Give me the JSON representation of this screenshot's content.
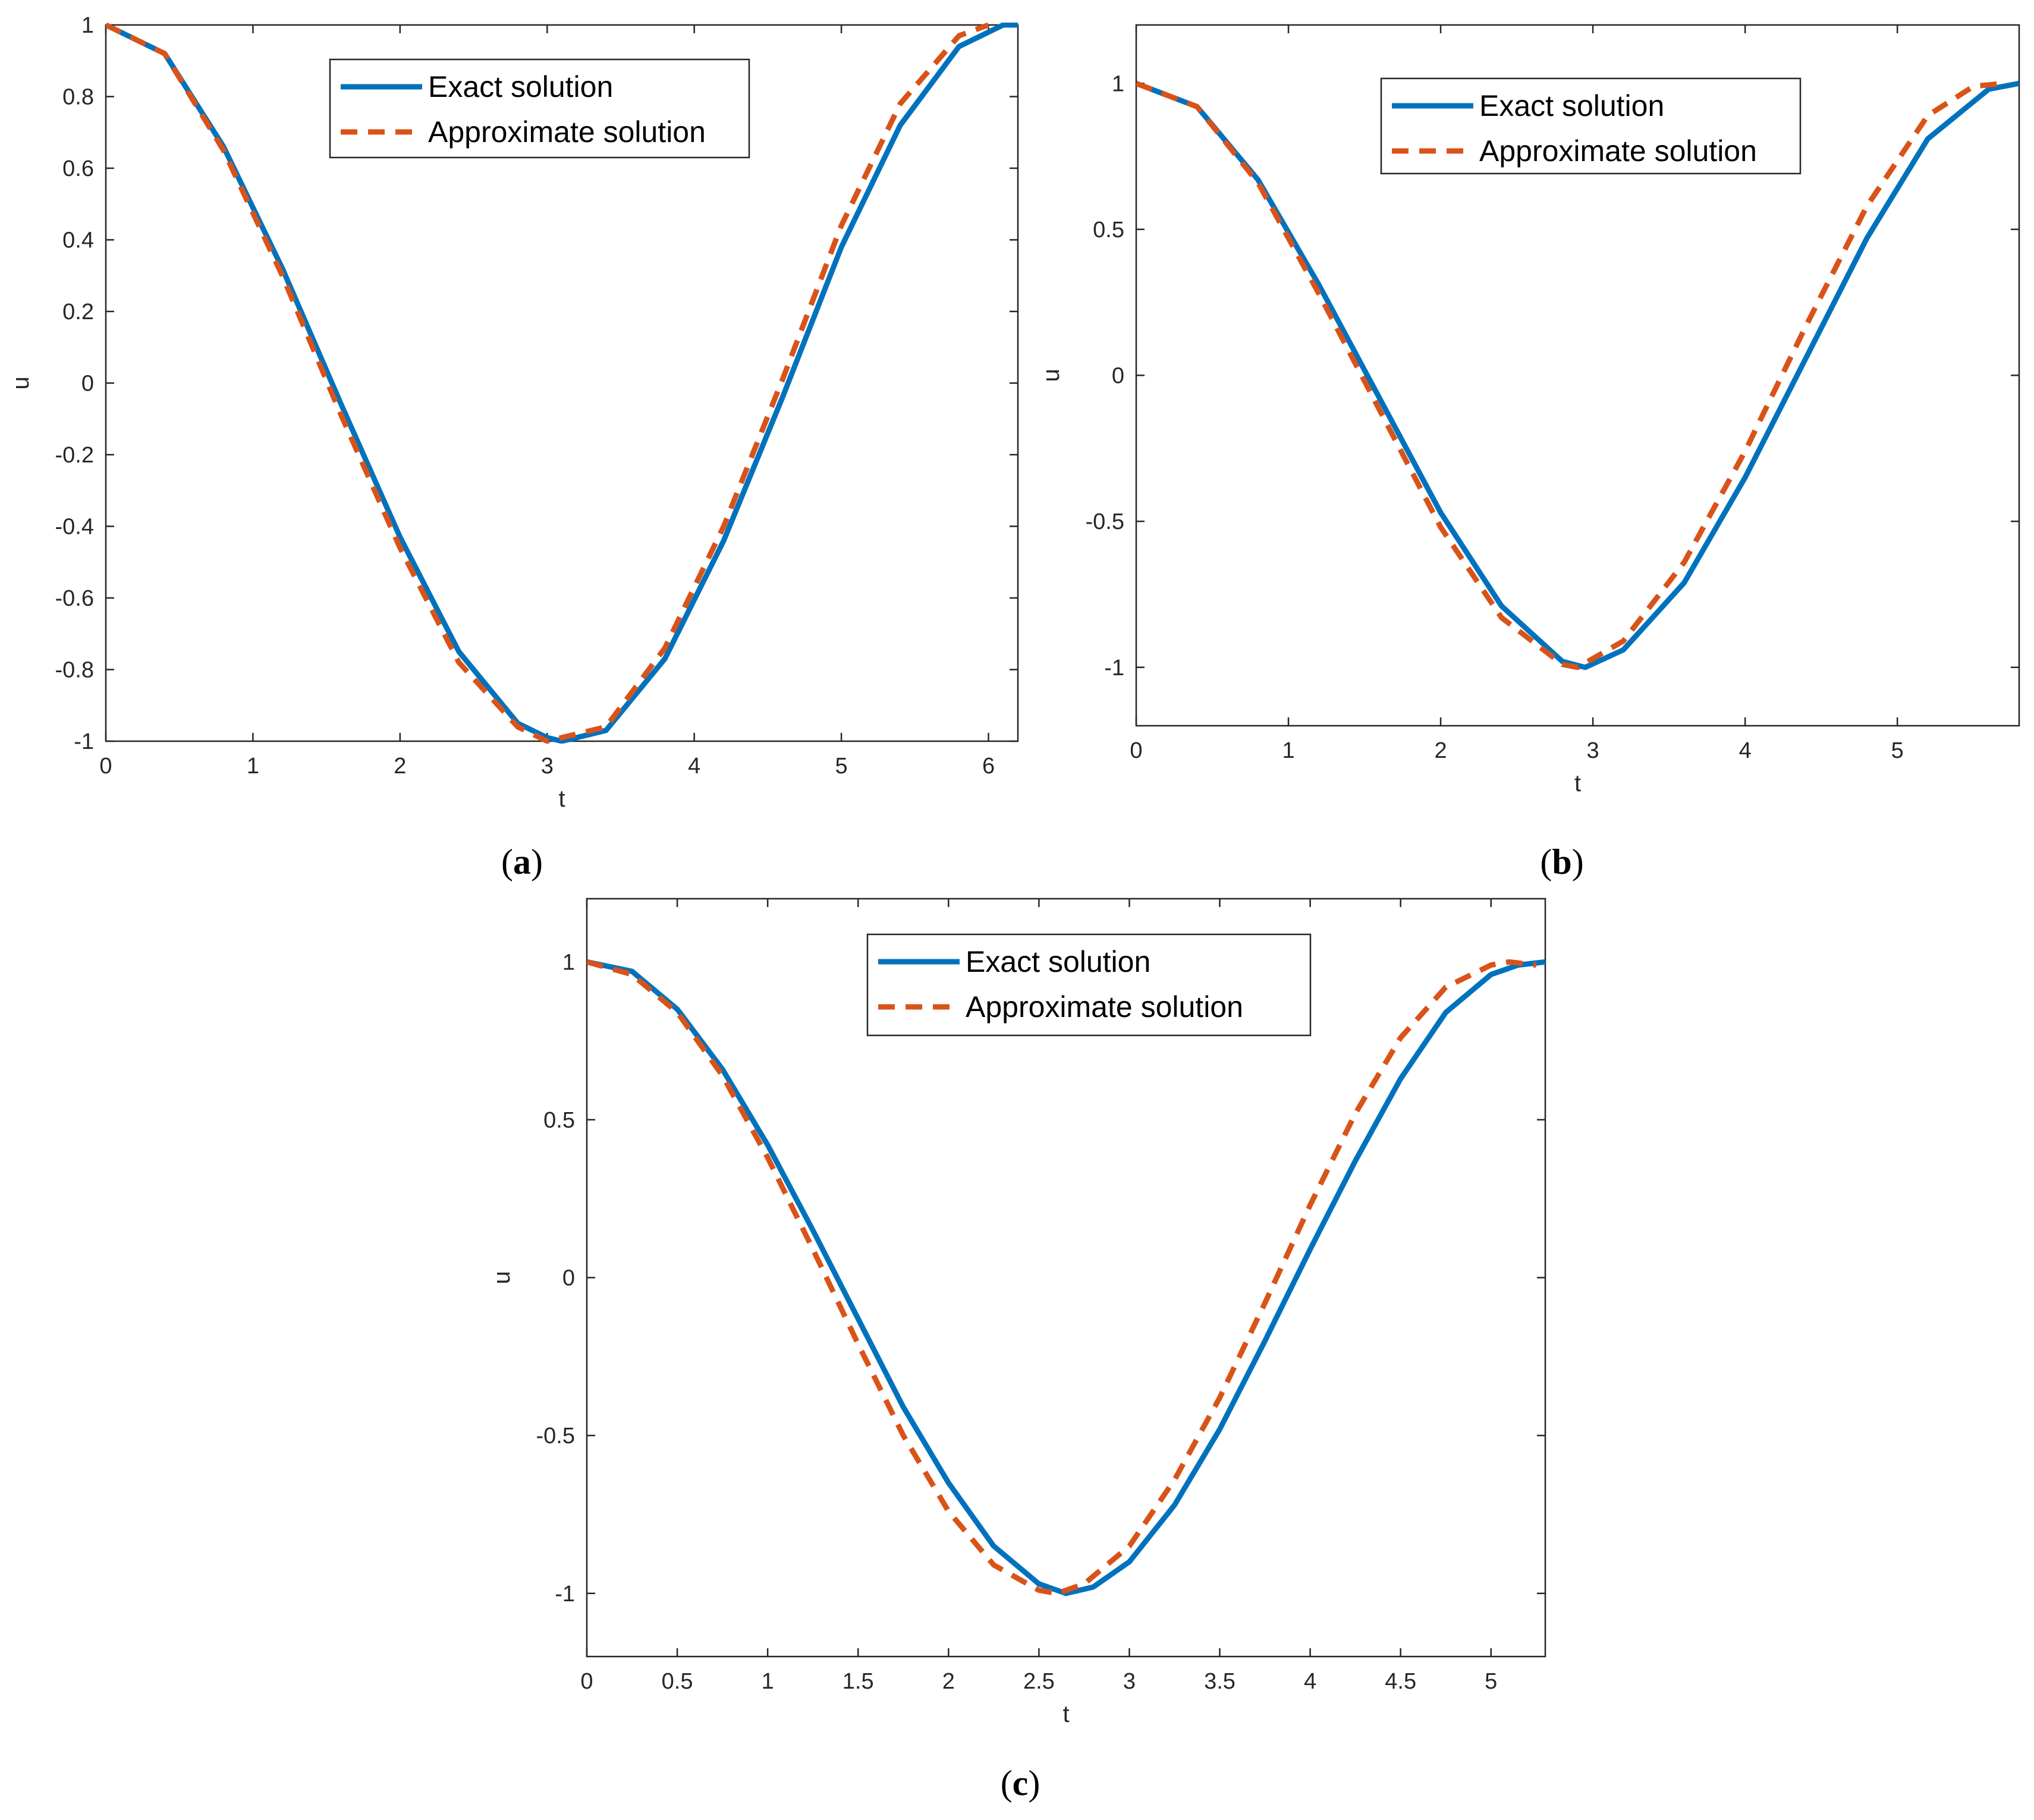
{
  "chart_data": [
    {
      "type": "line",
      "panel_label": "a",
      "xlabel": "t",
      "ylabel": "u",
      "xlim": [
        0,
        6.2
      ],
      "ylim": [
        -1,
        1
      ],
      "xticks": [
        "0",
        "1",
        "2",
        "3",
        "4",
        "5",
        "6"
      ],
      "yticks": [
        "-1",
        "-0.8",
        "-0.6",
        "-0.4",
        "-0.2",
        "0",
        "0.2",
        "0.4",
        "0.6",
        "0.8",
        "1"
      ],
      "grid": false,
      "legend": "top-center",
      "series": [
        {
          "name": "Exact solution",
          "style": "solid",
          "color": "#0072BD",
          "x": [
            0,
            0.4,
            0.8,
            1.2,
            1.6,
            2.0,
            2.4,
            2.8,
            3.0,
            3.1,
            3.4,
            3.8,
            4.2,
            4.6,
            5.0,
            5.4,
            5.8,
            6.1,
            6.2
          ],
          "y": [
            1.0,
            0.92,
            0.66,
            0.32,
            -0.06,
            -0.43,
            -0.75,
            -0.95,
            -0.99,
            -1.0,
            -0.97,
            -0.77,
            -0.44,
            -0.04,
            0.38,
            0.72,
            0.94,
            1.0,
            1.0
          ]
        },
        {
          "name": "Approximate solution",
          "style": "dashed",
          "color": "#D95319",
          "x": [
            0,
            0.4,
            0.8,
            1.2,
            1.6,
            2.0,
            2.4,
            2.8,
            3.0,
            3.4,
            3.8,
            4.2,
            4.6,
            5.0,
            5.4,
            5.8,
            6.0
          ],
          "y": [
            1.0,
            0.92,
            0.65,
            0.3,
            -0.09,
            -0.46,
            -0.78,
            -0.96,
            -1.0,
            -0.96,
            -0.74,
            -0.4,
            0.01,
            0.44,
            0.78,
            0.97,
            1.0
          ]
        }
      ]
    },
    {
      "type": "line",
      "panel_label": "b",
      "xlabel": "t",
      "ylabel": "u",
      "xlim": [
        0,
        5.8
      ],
      "ylim": [
        -1.2,
        1.2
      ],
      "xticks": [
        "0",
        "1",
        "2",
        "3",
        "4",
        "5"
      ],
      "yticks": [
        "-1",
        "-0.5",
        "0",
        "0.5",
        "1"
      ],
      "grid": false,
      "legend": "top-center",
      "series": [
        {
          "name": "Exact solution",
          "style": "solid",
          "color": "#0072BD",
          "x": [
            0,
            0.4,
            0.8,
            1.2,
            1.6,
            2.0,
            2.4,
            2.8,
            2.95,
            3.2,
            3.6,
            4.0,
            4.4,
            4.8,
            5.2,
            5.6,
            5.8
          ],
          "y": [
            1.0,
            0.92,
            0.67,
            0.31,
            -0.08,
            -0.47,
            -0.79,
            -0.98,
            -1.0,
            -0.94,
            -0.71,
            -0.35,
            0.06,
            0.47,
            0.81,
            0.98,
            1.0
          ]
        },
        {
          "name": "Approximate solution",
          "style": "dashed",
          "color": "#D95319",
          "x": [
            0,
            0.4,
            0.8,
            1.2,
            1.6,
            2.0,
            2.4,
            2.8,
            2.9,
            3.2,
            3.6,
            4.0,
            4.4,
            4.8,
            5.2,
            5.5,
            5.7
          ],
          "y": [
            1.0,
            0.92,
            0.66,
            0.28,
            -0.12,
            -0.52,
            -0.83,
            -0.99,
            -1.0,
            -0.91,
            -0.64,
            -0.26,
            0.17,
            0.58,
            0.89,
            0.99,
            1.0
          ]
        }
      ]
    },
    {
      "type": "line",
      "panel_label": "c",
      "xlabel": "t",
      "ylabel": "u",
      "xlim": [
        0,
        5.3
      ],
      "ylim": [
        -1.2,
        1.2
      ],
      "xticks": [
        "0",
        "0.5",
        "1",
        "1.5",
        "2",
        "2.5",
        "3",
        "3.5",
        "4",
        "4.5",
        "5"
      ],
      "yticks": [
        "-1",
        "-0.5",
        "0",
        "0.5",
        "1"
      ],
      "grid": false,
      "legend": "top-center",
      "series": [
        {
          "name": "Exact solution",
          "style": "solid",
          "color": "#0072BD",
          "x": [
            0,
            0.25,
            0.5,
            0.75,
            1.0,
            1.25,
            1.5,
            1.75,
            2.0,
            2.25,
            2.5,
            2.65,
            2.8,
            3.0,
            3.25,
            3.5,
            3.75,
            4.0,
            4.25,
            4.5,
            4.75,
            5.0,
            5.15,
            5.3
          ],
          "y": [
            1.0,
            0.97,
            0.85,
            0.66,
            0.42,
            0.15,
            -0.13,
            -0.41,
            -0.65,
            -0.85,
            -0.97,
            -1.0,
            -0.98,
            -0.9,
            -0.72,
            -0.48,
            -0.2,
            0.09,
            0.37,
            0.63,
            0.84,
            0.96,
            0.99,
            1.0
          ]
        },
        {
          "name": "Approximate solution",
          "style": "dashed",
          "color": "#D95319",
          "x": [
            0,
            0.25,
            0.5,
            0.75,
            1.0,
            1.25,
            1.5,
            1.75,
            2.0,
            2.25,
            2.5,
            2.6,
            2.75,
            3.0,
            3.25,
            3.5,
            3.75,
            4.0,
            4.25,
            4.5,
            4.75,
            5.0,
            5.1,
            5.25
          ],
          "y": [
            1.0,
            0.96,
            0.84,
            0.64,
            0.38,
            0.09,
            -0.21,
            -0.5,
            -0.74,
            -0.91,
            -0.99,
            -1.0,
            -0.97,
            -0.85,
            -0.64,
            -0.38,
            -0.08,
            0.23,
            0.52,
            0.76,
            0.92,
            0.99,
            1.0,
            0.99
          ]
        }
      ]
    }
  ]
}
